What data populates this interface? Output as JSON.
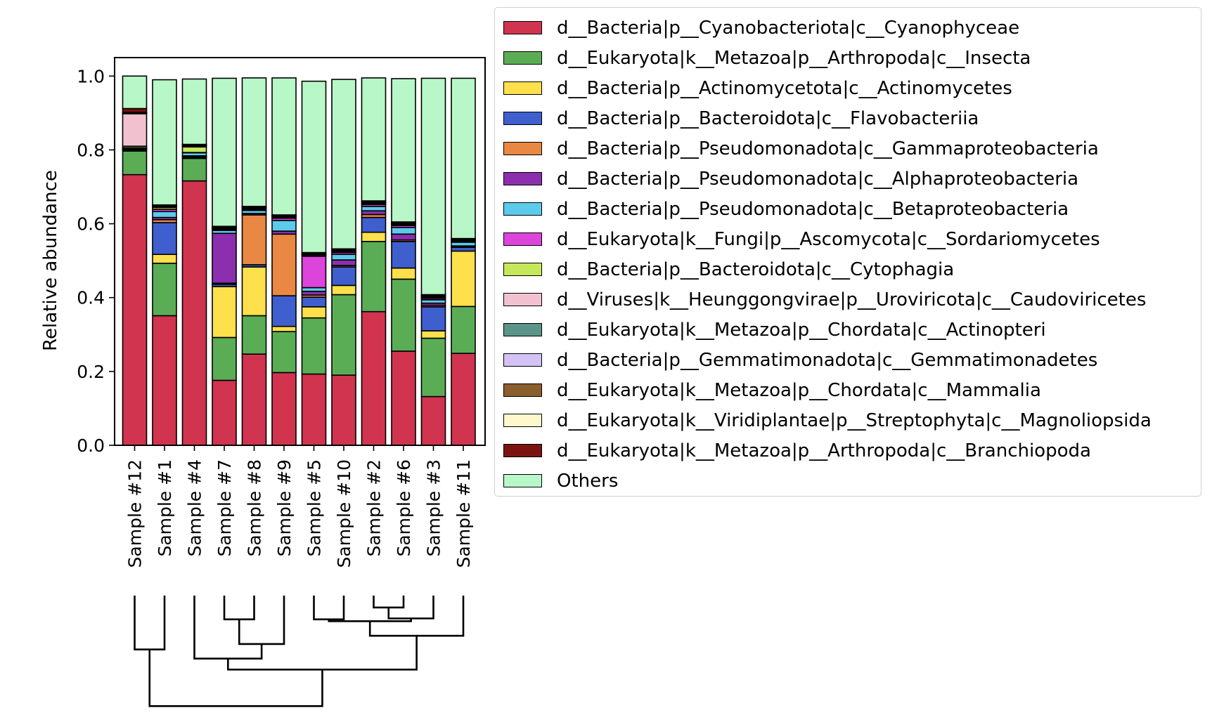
{
  "chart_data": {
    "type": "bar",
    "stacked": true,
    "title": "",
    "xlabel": "",
    "ylabel": "Relative abundance",
    "ylim": [
      0,
      1.05
    ],
    "yticks": [
      "0.0",
      "0.2",
      "0.4",
      "0.6",
      "0.8",
      "1.0"
    ],
    "categories": [
      "Sample #12",
      "Sample #1",
      "Sample #4",
      "Sample #7",
      "Sample #8",
      "Sample #9",
      "Sample #5",
      "Sample #10",
      "Sample #2",
      "Sample #6",
      "Sample #3",
      "Sample #11"
    ],
    "legend_position": "right",
    "series": [
      {
        "name": "d__Bacteria|p__Cyanobacteriota|c__Cyanophyceae",
        "color": "#d1344f",
        "values": [
          0.733,
          0.351,
          0.716,
          0.176,
          0.247,
          0.197,
          0.193,
          0.19,
          0.362,
          0.255,
          0.132,
          0.249
        ]
      },
      {
        "name": "d__Eukaryota|k__Metazoa|p__Arthropoda|c__Insecta",
        "color": "#5aad55",
        "values": [
          0.064,
          0.142,
          0.061,
          0.116,
          0.104,
          0.111,
          0.152,
          0.218,
          0.19,
          0.195,
          0.158,
          0.127
        ]
      },
      {
        "name": "d__Bacteria|p__Actinomycetota|c__Actinomycetes",
        "color": "#fde04b",
        "values": [
          0.003,
          0.024,
          0.003,
          0.138,
          0.132,
          0.014,
          0.03,
          0.025,
          0.025,
          0.03,
          0.02,
          0.15
        ]
      },
      {
        "name": "d__Bacteria|p__Bacteroidota|c__Flavobacteriia",
        "color": "#3f5fce",
        "values": [
          0.001,
          0.086,
          0.002,
          0.006,
          0.006,
          0.083,
          0.026,
          0.05,
          0.04,
          0.072,
          0.065,
          0.01
        ]
      },
      {
        "name": "d__Bacteria|p__Pseudomonadota|c__Gammaproteobacteria",
        "color": "#e88842",
        "values": [
          0.001,
          0.008,
          0.001,
          0.003,
          0.135,
          0.167,
          0.006,
          0.004,
          0.008,
          0.004,
          0.004,
          0.002
        ]
      },
      {
        "name": "d__Bacteria|p__Pseudomonadota|c__Alphaproteobacteria",
        "color": "#8c2fae",
        "values": [
          0.001,
          0.006,
          0.001,
          0.135,
          0.004,
          0.008,
          0.01,
          0.015,
          0.01,
          0.016,
          0.006,
          0.002
        ]
      },
      {
        "name": "d__Bacteria|p__Pseudomonadota|c__Betaproteobacteria",
        "color": "#5ccbeb",
        "values": [
          0.002,
          0.016,
          0.008,
          0.008,
          0.008,
          0.029,
          0.01,
          0.015,
          0.012,
          0.018,
          0.009,
          0.01
        ]
      },
      {
        "name": "d__Eukaryota|k__Fungi|p__Ascomycota|c__Sordariomycetes",
        "color": "#dd44dc",
        "values": [
          0.001,
          0.006,
          0.001,
          0.002,
          0.002,
          0.006,
          0.085,
          0.005,
          0.005,
          0.005,
          0.004,
          0.001
        ]
      },
      {
        "name": "d__Bacteria|p__Bacteroidota|c__Cytophagia",
        "color": "#c5e85a",
        "values": [
          0.004,
          0.005,
          0.015,
          0.002,
          0.002,
          0.002,
          0.003,
          0.003,
          0.003,
          0.003,
          0.003,
          0.002
        ]
      },
      {
        "name": "d__Viruses|k__Heunggongvirae|p__Uroviricota|c__Caudoviricetes",
        "color": "#f2c1d0",
        "values": [
          0.088,
          0.002,
          0.002,
          0.002,
          0.002,
          0.002,
          0.002,
          0.002,
          0.002,
          0.002,
          0.002,
          0.002
        ]
      },
      {
        "name": "d__Eukaryota|k__Metazoa|p__Chordata|c__Actinopteri",
        "color": "#5b9488",
        "values": [
          0.001,
          0.001,
          0.001,
          0.001,
          0.001,
          0.001,
          0.001,
          0.001,
          0.001,
          0.001,
          0.001,
          0.001
        ]
      },
      {
        "name": "d__Bacteria|p__Gemmatimonadota|c__Gemmatimonadetes",
        "color": "#d3c3f5",
        "values": [
          0.001,
          0.001,
          0.001,
          0.001,
          0.001,
          0.001,
          0.001,
          0.001,
          0.001,
          0.001,
          0.001,
          0.001
        ]
      },
      {
        "name": "d__Eukaryota|k__Metazoa|p__Chordata|c__Mammalia",
        "color": "#8b5e2e",
        "values": [
          0.001,
          0.001,
          0.001,
          0.001,
          0.001,
          0.001,
          0.001,
          0.001,
          0.001,
          0.001,
          0.001,
          0.001
        ]
      },
      {
        "name": "d__Eukaryota|k__Viridiplantae|p__Streptophyta|c__Magnoliopsida",
        "color": "#fff8cc",
        "values": [
          0.001,
          0.001,
          0.001,
          0.001,
          0.001,
          0.001,
          0.001,
          0.001,
          0.001,
          0.001,
          0.001,
          0.001
        ]
      },
      {
        "name": "d__Eukaryota|k__Metazoa|p__Arthropoda|c__Branchiopoda",
        "color": "#7b1410",
        "values": [
          0.01,
          0.001,
          0.001,
          0.001,
          0.001,
          0.001,
          0.001,
          0.001,
          0.001,
          0.001,
          0.001,
          0.001
        ]
      },
      {
        "name": "Others",
        "color": "#b8f7c7",
        "values": [
          0.088,
          0.339,
          0.177,
          0.401,
          0.348,
          0.371,
          0.464,
          0.459,
          0.333,
          0.388,
          0.586,
          0.434
        ]
      }
    ],
    "dendrogram": {
      "leaves": [
        "Sample #12",
        "Sample #1",
        "Sample #4",
        "Sample #7",
        "Sample #8",
        "Sample #9",
        "Sample #5",
        "Sample #10",
        "Sample #2",
        "Sample #6",
        "Sample #3",
        "Sample #11"
      ],
      "merges": [
        [
          8,
          9,
          0.13
        ],
        [
          12,
          10,
          0.25
        ],
        [
          6,
          7,
          0.26
        ],
        [
          14,
          13,
          0.28
        ],
        [
          3,
          4,
          0.26
        ],
        [
          16,
          5,
          0.53
        ],
        [
          15,
          11,
          0.44
        ],
        [
          2,
          17,
          0.69
        ],
        [
          0,
          1,
          0.59
        ],
        [
          19,
          18,
          0.81
        ],
        [
          20,
          21,
          1.21
        ]
      ]
    }
  }
}
